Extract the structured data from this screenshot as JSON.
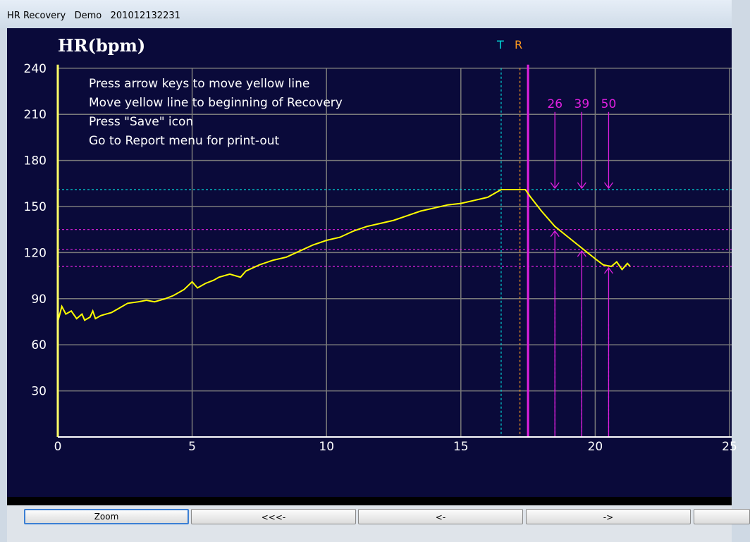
{
  "window": {
    "title": "HR Recovery   Demo   201012132231"
  },
  "plot": {
    "title": "HR(bpm)",
    "marker_t": "T",
    "marker_r": "R",
    "instructions": [
      "Press arrow keys to move yellow line",
      "Move yellow line to beginning of Recovery",
      "Press \"Save\" icon",
      "Go to Report menu for print-out"
    ],
    "recovery_labels": [
      "26",
      "39",
      "50"
    ],
    "colors": {
      "background": "#0a0a3a",
      "grid": "#7a7a7a",
      "trace": "#ffff00",
      "cyan": "#00d5d5",
      "orange": "#ff9a1f",
      "magenta": "#e020e0"
    }
  },
  "chart_data": {
    "type": "line",
    "title": "HR(bpm)",
    "xlabel": "",
    "ylabel": "HR(bpm)",
    "xlim": [
      0,
      25
    ],
    "ylim": [
      0,
      240
    ],
    "x_ticks": [
      "0",
      "5",
      "10",
      "15",
      "20",
      "25"
    ],
    "y_ticks": [
      "240",
      "210",
      "180",
      "150",
      "120",
      "90",
      "60",
      "30"
    ],
    "grid": true,
    "markers": {
      "T": 16.5,
      "R": 17.2,
      "cursor": 17.5
    },
    "peak_hr": 161,
    "recovery": [
      {
        "label": "26",
        "x": 18.5,
        "hr": 135
      },
      {
        "label": "39",
        "x": 19.5,
        "hr": 122
      },
      {
        "label": "50",
        "x": 20.5,
        "hr": 111
      }
    ],
    "series": [
      {
        "values": [
          [
            0,
            75
          ],
          [
            0.15,
            85
          ],
          [
            0.3,
            80
          ],
          [
            0.5,
            82
          ],
          [
            0.7,
            77
          ],
          [
            0.9,
            80
          ],
          [
            1.0,
            76
          ],
          [
            1.2,
            78
          ],
          [
            1.3,
            82
          ],
          [
            1.4,
            77
          ],
          [
            1.6,
            79
          ],
          [
            1.8,
            80
          ],
          [
            2.0,
            81
          ],
          [
            2.3,
            84
          ],
          [
            2.6,
            87
          ],
          [
            3.0,
            88
          ],
          [
            3.3,
            89
          ],
          [
            3.6,
            88
          ],
          [
            4.0,
            90
          ],
          [
            4.3,
            92
          ],
          [
            4.7,
            96
          ],
          [
            5.0,
            101
          ],
          [
            5.2,
            97
          ],
          [
            5.5,
            100
          ],
          [
            5.8,
            102
          ],
          [
            6.0,
            104
          ],
          [
            6.4,
            106
          ],
          [
            6.8,
            104
          ],
          [
            7.0,
            108
          ],
          [
            7.5,
            112
          ],
          [
            8.0,
            115
          ],
          [
            8.5,
            117
          ],
          [
            9.0,
            121
          ],
          [
            9.5,
            125
          ],
          [
            10.0,
            128
          ],
          [
            10.5,
            130
          ],
          [
            11.0,
            134
          ],
          [
            11.5,
            137
          ],
          [
            12.0,
            139
          ],
          [
            12.5,
            141
          ],
          [
            13.0,
            144
          ],
          [
            13.5,
            147
          ],
          [
            14.0,
            149
          ],
          [
            14.5,
            151
          ],
          [
            15.0,
            152
          ],
          [
            15.5,
            154
          ],
          [
            16.0,
            156
          ],
          [
            16.5,
            161
          ],
          [
            17.0,
            161
          ],
          [
            17.4,
            161
          ],
          [
            17.6,
            156
          ],
          [
            18.0,
            147
          ],
          [
            18.5,
            137
          ],
          [
            19.0,
            130
          ],
          [
            19.5,
            123
          ],
          [
            20.0,
            116
          ],
          [
            20.3,
            112
          ],
          [
            20.6,
            111
          ],
          [
            20.8,
            114
          ],
          [
            21.0,
            109
          ],
          [
            21.2,
            113
          ],
          [
            21.3,
            111
          ]
        ]
      }
    ]
  }
}
